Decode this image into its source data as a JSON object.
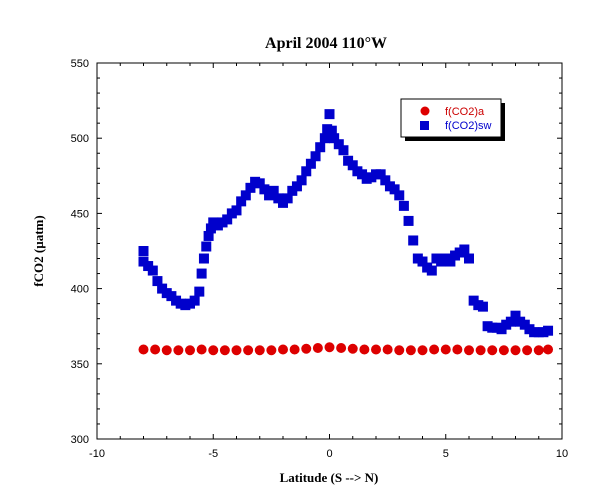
{
  "chart_data": {
    "type": "scatter",
    "title": "April 2004 110°W",
    "xlabel": "Latitude (S --> N)",
    "ylabel": "fCO2 (µatm)",
    "xlim": [
      -10,
      10
    ],
    "ylim": [
      300,
      550
    ],
    "xticks": [
      -10,
      -5,
      0,
      5,
      10
    ],
    "yticks": [
      300,
      350,
      400,
      450,
      500,
      550
    ],
    "grid": false,
    "legend_position": "top-right",
    "series": [
      {
        "name": "f(CO2)a",
        "marker": "circle",
        "color": "#dd0000",
        "x": [
          -8.0,
          -7.5,
          -7.0,
          -6.5,
          -6.0,
          -5.5,
          -5.0,
          -4.5,
          -4.0,
          -3.5,
          -3.0,
          -2.5,
          -2.0,
          -1.5,
          -1.0,
          -0.5,
          0.0,
          0.5,
          1.0,
          1.5,
          2.0,
          2.5,
          3.0,
          3.5,
          4.0,
          4.5,
          5.0,
          5.5,
          6.0,
          6.5,
          7.0,
          7.5,
          8.0,
          8.5,
          9.0,
          9.4
        ],
        "y": [
          359.5,
          359.5,
          359.0,
          359.0,
          359.0,
          359.5,
          359.0,
          359.0,
          359.0,
          359.0,
          359.0,
          359.0,
          359.5,
          359.5,
          360.0,
          360.5,
          361.0,
          360.5,
          360.0,
          359.5,
          359.5,
          359.5,
          359.0,
          359.0,
          359.0,
          359.5,
          359.5,
          359.5,
          359.0,
          359.0,
          359.0,
          359.0,
          359.0,
          359.0,
          359.0,
          359.5
        ]
      },
      {
        "name": "f(CO2)sw",
        "marker": "square",
        "color": "#0000cc",
        "x": [
          -8.0,
          -8.0,
          -7.8,
          -7.6,
          -7.4,
          -7.2,
          -7.0,
          -6.8,
          -6.6,
          -6.4,
          -6.2,
          -6.0,
          -5.8,
          -5.6,
          -5.5,
          -5.4,
          -5.3,
          -5.2,
          -5.1,
          -5.0,
          -4.8,
          -4.6,
          -4.4,
          -4.2,
          -4.0,
          -3.8,
          -3.6,
          -3.4,
          -3.2,
          -3.0,
          -2.8,
          -2.6,
          -2.4,
          -2.2,
          -2.0,
          -1.8,
          -1.6,
          -1.4,
          -1.2,
          -1.0,
          -0.8,
          -0.6,
          -0.4,
          -0.2,
          -0.1,
          0.0,
          0.1,
          0.2,
          0.4,
          0.6,
          0.8,
          1.0,
          1.2,
          1.4,
          1.6,
          1.8,
          2.0,
          2.2,
          2.4,
          2.6,
          2.8,
          3.0,
          3.2,
          3.4,
          3.6,
          3.8,
          4.0,
          4.2,
          4.4,
          4.6,
          4.8,
          5.0,
          5.2,
          5.4,
          5.6,
          5.8,
          6.0,
          6.2,
          6.4,
          6.6,
          6.8,
          7.0,
          7.2,
          7.4,
          7.6,
          7.8,
          8.0,
          8.2,
          8.4,
          8.6,
          8.8,
          9.0,
          9.2,
          9.4
        ],
        "y": [
          425,
          418,
          415,
          412,
          405,
          400,
          397,
          395,
          392,
          390,
          389,
          390,
          392,
          398,
          410,
          420,
          428,
          435,
          440,
          444,
          442,
          444,
          446,
          450,
          452,
          458,
          462,
          467,
          471,
          470,
          466,
          462,
          465,
          460,
          457,
          460,
          465,
          468,
          472,
          478,
          483,
          488,
          494,
          500,
          506,
          516,
          505,
          500,
          496,
          492,
          485,
          482,
          478,
          476,
          473,
          474,
          476,
          476,
          472,
          468,
          466,
          462,
          455,
          445,
          432,
          420,
          418,
          414,
          412,
          420,
          418,
          420,
          418,
          422,
          424,
          426,
          420,
          392,
          389,
          388,
          375,
          374,
          374,
          373,
          376,
          378,
          382,
          378,
          376,
          373,
          371,
          371,
          371,
          372
        ]
      }
    ]
  }
}
